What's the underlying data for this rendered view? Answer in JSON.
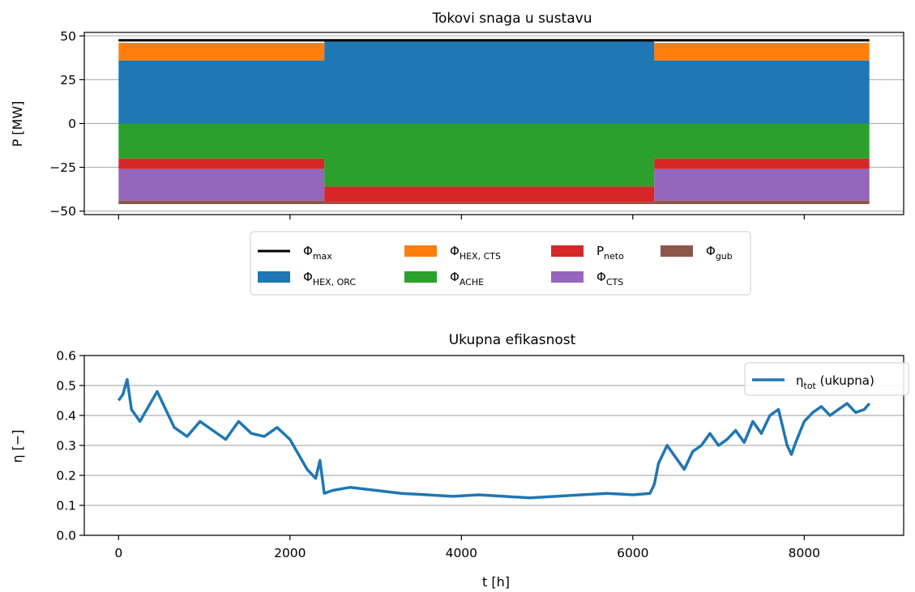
{
  "chart_data": [
    {
      "type": "area",
      "title": "Tokovi snaga u sustavu",
      "xlabel": "",
      "ylabel": "P [MW]",
      "xlim": [
        -400,
        9160
      ],
      "ylim": [
        -52,
        52
      ],
      "yticks": [
        50,
        25,
        0,
        -25,
        -50
      ],
      "xticks": [
        0,
        2000,
        4000,
        6000,
        8000
      ],
      "grid": "y",
      "legend_position": "below plot",
      "max_line": {
        "label": "Φmax",
        "value": 47.5,
        "x_range": [
          0,
          8760
        ],
        "color": "#000000"
      },
      "x": [
        0,
        2400,
        2401,
        6250,
        6251,
        8760
      ],
      "series": [
        {
          "name": "ΦHEX, ORC",
          "label_main": "Φ",
          "label_sub": "HEX, ORC",
          "color": "#1f77b4",
          "lower": [
            0,
            0,
            0,
            0,
            0,
            0
          ],
          "upper": [
            36,
            36,
            47,
            47,
            36,
            36
          ]
        },
        {
          "name": "ΦHEX, CTS",
          "label_main": "Φ",
          "label_sub": "HEX, CTS",
          "color": "#ff7f0e",
          "lower": [
            36,
            36,
            47,
            47,
            36,
            36
          ],
          "upper": [
            46,
            46,
            47,
            47,
            46,
            46
          ]
        },
        {
          "name": "ΦACHE",
          "label_main": "Φ",
          "label_sub": "ACHE",
          "color": "#2ca02c",
          "lower": [
            -20,
            -20,
            -36,
            -36,
            -20,
            -20
          ],
          "upper": [
            0,
            0,
            0,
            0,
            0,
            0
          ]
        },
        {
          "name": "Pneto",
          "label_main": "P",
          "label_sub": "neto",
          "color": "#d62728",
          "lower": [
            -26,
            -26,
            -45,
            -45,
            -26,
            -26
          ],
          "upper": [
            -20,
            -20,
            -36,
            -36,
            -20,
            -20
          ]
        },
        {
          "name": "ΦCTS",
          "label_main": "Φ",
          "label_sub": "CTS",
          "color": "#9467bd",
          "lower": [
            -44,
            -44,
            -45,
            -45,
            -44,
            -44
          ],
          "upper": [
            -26,
            -26,
            -45,
            -45,
            -26,
            -26
          ]
        },
        {
          "name": "Φgub",
          "label_main": "Φ",
          "label_sub": "gub",
          "color": "#8c564b",
          "lower": [
            -46,
            -46,
            -46,
            -46,
            -46,
            -46
          ],
          "upper": [
            -44,
            -44,
            -45,
            -45,
            -44,
            -44
          ]
        }
      ]
    },
    {
      "type": "line",
      "title": "Ukupna efikasnost",
      "xlabel": "t [h]",
      "ylabel": "η [−]",
      "xlim": [
        -400,
        9160
      ],
      "ylim": [
        0,
        0.6
      ],
      "yticks": [
        0.0,
        0.1,
        0.2,
        0.3,
        0.4,
        0.5,
        0.6
      ],
      "ytick_labels": [
        "0.0",
        "0.1",
        "0.2",
        "0.3",
        "0.4",
        "0.5",
        "0.6"
      ],
      "xticks": [
        0,
        2000,
        4000,
        6000,
        8000
      ],
      "grid": "y",
      "legend_position": "upper right",
      "series": [
        {
          "name": "ηtot (ukupna)",
          "label_main": "η",
          "label_sub": "tot",
          "label_tail": " (ukupna)",
          "color": "#1f77b4",
          "x": [
            0,
            50,
            100,
            150,
            250,
            350,
            450,
            550,
            650,
            800,
            950,
            1100,
            1250,
            1400,
            1550,
            1700,
            1850,
            2000,
            2100,
            2200,
            2300,
            2350,
            2400,
            2500,
            2700,
            3000,
            3300,
            3600,
            3900,
            4200,
            4500,
            4800,
            5100,
            5400,
            5700,
            6000,
            6200,
            6250,
            6300,
            6400,
            6500,
            6600,
            6700,
            6800,
            6900,
            7000,
            7100,
            7200,
            7300,
            7400,
            7500,
            7600,
            7700,
            7800,
            7850,
            7900,
            8000,
            8100,
            8200,
            8300,
            8400,
            8500,
            8600,
            8700,
            8760
          ],
          "values": [
            0.45,
            0.47,
            0.52,
            0.42,
            0.38,
            0.43,
            0.48,
            0.42,
            0.36,
            0.33,
            0.38,
            0.35,
            0.32,
            0.38,
            0.34,
            0.33,
            0.36,
            0.32,
            0.27,
            0.22,
            0.19,
            0.25,
            0.14,
            0.15,
            0.16,
            0.15,
            0.14,
            0.135,
            0.13,
            0.135,
            0.13,
            0.125,
            0.13,
            0.135,
            0.14,
            0.135,
            0.14,
            0.17,
            0.24,
            0.3,
            0.26,
            0.22,
            0.28,
            0.3,
            0.34,
            0.3,
            0.32,
            0.35,
            0.31,
            0.38,
            0.34,
            0.4,
            0.42,
            0.3,
            0.27,
            0.31,
            0.38,
            0.41,
            0.43,
            0.4,
            0.42,
            0.44,
            0.41,
            0.42,
            0.44
          ]
        }
      ]
    }
  ]
}
